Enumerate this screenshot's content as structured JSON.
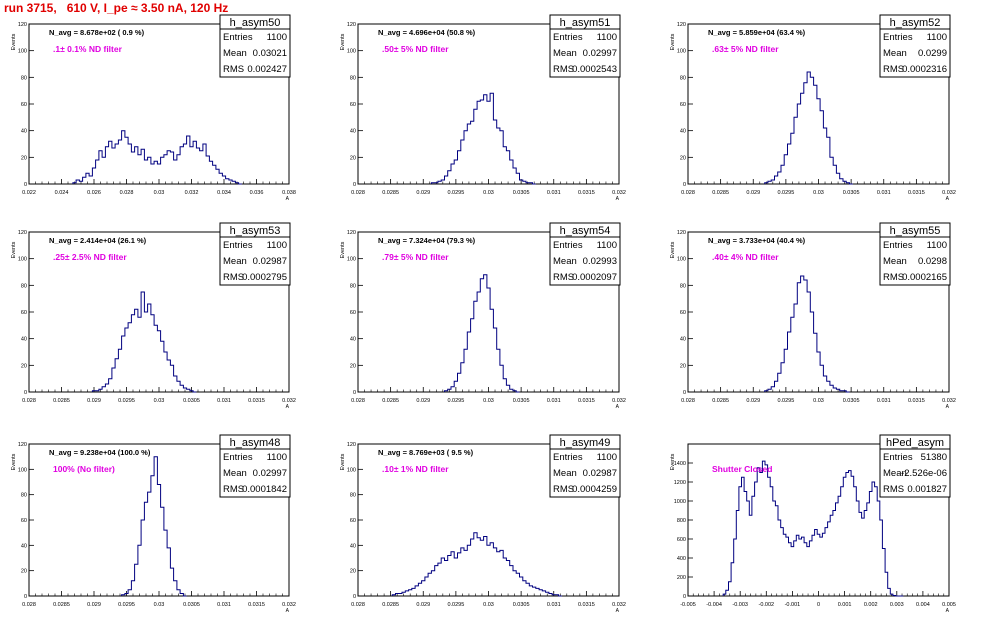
{
  "page_title": "run 3715,   610 V, I_pe ≈ 3.50 nA, 120 Hz",
  "colors": {
    "title": "#e00000",
    "histogram": "#000080",
    "filter_label": "#e000e0"
  },
  "stats_labels": {
    "entries": "Entries",
    "mean": "Mean",
    "rms": "RMS"
  },
  "chart_data": [
    {
      "type": "histogram",
      "name": "h_asym50",
      "navg": "N_avg = 8.678e+02 ( 0.9 %)",
      "filter": ".1± 0.1% ND filter",
      "entries": "1100",
      "mean": "0.03021",
      "rms": "0.002427",
      "xlabel": "A_UID",
      "ylabel": "Events",
      "xlim": [
        0.022,
        0.038
      ],
      "ylim": [
        0,
        120
      ],
      "xticks": [
        0.022,
        0.024,
        0.026,
        0.028,
        0.03,
        0.032,
        0.034,
        0.036,
        0.038
      ],
      "xtick_labels": [
        "0.022",
        "0.024",
        "0.026",
        "0.028",
        "0.03",
        "0.032",
        "0.034",
        "0.036",
        "0.038"
      ],
      "yticks": [
        0,
        20,
        40,
        60,
        80,
        100,
        120
      ],
      "ytick_labels": [
        "0",
        "20",
        "40",
        "60",
        "80",
        "100",
        "120"
      ],
      "x": [
        0.0248,
        0.025,
        0.0252,
        0.0254,
        0.0256,
        0.0258,
        0.026,
        0.0262,
        0.0264,
        0.0266,
        0.0268,
        0.027,
        0.0272,
        0.0274,
        0.0276,
        0.0278,
        0.028,
        0.0282,
        0.0284,
        0.0286,
        0.0288,
        0.029,
        0.0292,
        0.0294,
        0.0296,
        0.0298,
        0.03,
        0.0302,
        0.0304,
        0.0306,
        0.0308,
        0.031,
        0.0312,
        0.0314,
        0.0316,
        0.0318,
        0.032,
        0.0322,
        0.0324,
        0.0326,
        0.0328,
        0.033,
        0.0332,
        0.0334,
        0.0336,
        0.0338,
        0.034,
        0.0342,
        0.0344,
        0.0346,
        0.0348,
        0.035
      ],
      "values": [
        1,
        3,
        2,
        5,
        8,
        6,
        12,
        18,
        25,
        20,
        28,
        32,
        27,
        30,
        33,
        40,
        35,
        30,
        24,
        28,
        22,
        26,
        18,
        20,
        15,
        17,
        15,
        20,
        22,
        25,
        24,
        18,
        22,
        28,
        30,
        36,
        28,
        32,
        27,
        25,
        30,
        21,
        17,
        14,
        11,
        8,
        6,
        4,
        3,
        2,
        1,
        0
      ]
    },
    {
      "type": "histogram",
      "name": "h_asym51",
      "navg": "N_avg = 4.696e+04 (50.8 %)",
      "filter": ".50± 5% ND filter",
      "entries": "1100",
      "mean": "0.02997",
      "rms": "0.0002543",
      "xlabel": "A_UID",
      "ylabel": "Events",
      "xlim": [
        0.028,
        0.032
      ],
      "ylim": [
        0,
        120
      ],
      "xticks": [
        0.028,
        0.0285,
        0.029,
        0.0295,
        0.03,
        0.0305,
        0.031,
        0.0315,
        0.032
      ],
      "xtick_labels": [
        "0.028",
        "0.0285",
        "0.029",
        "0.0295",
        "0.03",
        "0.0305",
        "0.031",
        "0.0315",
        "0.032"
      ],
      "yticks": [
        0,
        20,
        40,
        60,
        80,
        100,
        120
      ],
      "ytick_labels": [
        "0",
        "20",
        "40",
        "60",
        "80",
        "100",
        "120"
      ],
      "x": [
        0.02915,
        0.0292,
        0.02925,
        0.0293,
        0.02935,
        0.0294,
        0.02945,
        0.0295,
        0.02955,
        0.0296,
        0.02965,
        0.0297,
        0.02975,
        0.0298,
        0.02985,
        0.0299,
        0.02995,
        0.03,
        0.03005,
        0.0301,
        0.03015,
        0.0302,
        0.03025,
        0.0303,
        0.03035,
        0.0304,
        0.03045,
        0.0305,
        0.03055,
        0.0306,
        0.03065,
        0.0307
      ],
      "values": [
        1,
        1,
        2,
        3,
        6,
        10,
        15,
        18,
        25,
        33,
        40,
        45,
        47,
        56,
        62,
        63,
        67,
        62,
        68,
        48,
        42,
        40,
        28,
        25,
        18,
        12,
        8,
        3,
        2,
        1,
        1,
        0
      ]
    },
    {
      "type": "histogram",
      "name": "h_asym52",
      "navg": "N_avg = 5.859e+04 (63.4 %)",
      "filter": ".63± 5% ND filter",
      "entries": "1100",
      "mean": "0.0299",
      "rms": "0.0002316",
      "xlabel": "A_UID",
      "ylabel": "Events",
      "xlim": [
        0.028,
        0.032
      ],
      "ylim": [
        0,
        120
      ],
      "xticks": [
        0.028,
        0.0285,
        0.029,
        0.0295,
        0.03,
        0.0305,
        0.031,
        0.0315,
        0.032
      ],
      "xtick_labels": [
        "0.028",
        "0.0285",
        "0.029",
        "0.0295",
        "0.03",
        "0.0305",
        "0.031",
        "0.0315",
        "0.032"
      ],
      "yticks": [
        0,
        20,
        40,
        60,
        80,
        100,
        120
      ],
      "ytick_labels": [
        "0",
        "20",
        "40",
        "60",
        "80",
        "100",
        "120"
      ],
      "x": [
        0.0292,
        0.02925,
        0.0293,
        0.02935,
        0.0294,
        0.02945,
        0.0295,
        0.02955,
        0.0296,
        0.02965,
        0.0297,
        0.02975,
        0.0298,
        0.02985,
        0.0299,
        0.02995,
        0.03,
        0.03005,
        0.0301,
        0.03015,
        0.0302,
        0.03025,
        0.0303,
        0.03035,
        0.0304,
        0.03045,
        0.0305
      ],
      "values": [
        1,
        2,
        3,
        6,
        9,
        14,
        22,
        30,
        38,
        50,
        60,
        68,
        76,
        84,
        80,
        74,
        64,
        55,
        42,
        35,
        20,
        14,
        8,
        4,
        2,
        1,
        0
      ]
    },
    {
      "type": "histogram",
      "name": "h_asym53",
      "navg": "N_avg = 2.414e+04 (26.1 %)",
      "filter": ".25± 2.5% ND filter",
      "entries": "1100",
      "mean": "0.02987",
      "rms": "0.0002795",
      "xlabel": "A_UID",
      "ylabel": "Events",
      "xlim": [
        0.028,
        0.032
      ],
      "ylim": [
        0,
        120
      ],
      "xticks": [
        0.028,
        0.0285,
        0.029,
        0.0295,
        0.03,
        0.0305,
        0.031,
        0.0315,
        0.032
      ],
      "xtick_labels": [
        "0.028",
        "0.0285",
        "0.029",
        "0.0295",
        "0.03",
        "0.0305",
        "0.031",
        "0.0315",
        "0.032"
      ],
      "yticks": [
        0,
        20,
        40,
        60,
        80,
        100,
        120
      ],
      "ytick_labels": [
        "0",
        "20",
        "40",
        "60",
        "80",
        "100",
        "120"
      ],
      "x": [
        0.029,
        0.02905,
        0.0291,
        0.02915,
        0.0292,
        0.02925,
        0.0293,
        0.02935,
        0.0294,
        0.02945,
        0.0295,
        0.02955,
        0.0296,
        0.02965,
        0.0297,
        0.02975,
        0.0298,
        0.02985,
        0.0299,
        0.02995,
        0.03,
        0.03005,
        0.0301,
        0.03015,
        0.0302,
        0.03025,
        0.0303,
        0.03035,
        0.0304,
        0.03045,
        0.0305,
        0.03055
      ],
      "values": [
        1,
        1,
        2,
        4,
        6,
        10,
        18,
        25,
        32,
        42,
        48,
        52,
        58,
        62,
        56,
        75,
        60,
        66,
        58,
        50,
        46,
        38,
        30,
        24,
        20,
        12,
        8,
        5,
        3,
        2,
        1,
        0
      ]
    },
    {
      "type": "histogram",
      "name": "h_asym54",
      "navg": "N_avg = 7.324e+04 (79.3 %)",
      "filter": ".79± 5% ND filter",
      "entries": "1100",
      "mean": "0.02993",
      "rms": "0.0002097",
      "xlabel": "A_UID",
      "ylabel": "Events",
      "xlim": [
        0.028,
        0.032
      ],
      "ylim": [
        0,
        120
      ],
      "xticks": [
        0.028,
        0.0285,
        0.029,
        0.0295,
        0.03,
        0.0305,
        0.031,
        0.0315,
        0.032
      ],
      "xtick_labels": [
        "0.028",
        "0.0285",
        "0.029",
        "0.0295",
        "0.03",
        "0.0305",
        "0.031",
        "0.0315",
        "0.032"
      ],
      "yticks": [
        0,
        20,
        40,
        60,
        80,
        100,
        120
      ],
      "ytick_labels": [
        "0",
        "20",
        "40",
        "60",
        "80",
        "100",
        "120"
      ],
      "x": [
        0.02935,
        0.0294,
        0.02945,
        0.0295,
        0.02955,
        0.0296,
        0.02965,
        0.0297,
        0.02975,
        0.0298,
        0.02985,
        0.0299,
        0.02995,
        0.03,
        0.03005,
        0.0301,
        0.03015,
        0.0302,
        0.03025,
        0.0303,
        0.03035,
        0.0304,
        0.03045
      ],
      "values": [
        1,
        2,
        4,
        8,
        14,
        22,
        32,
        45,
        55,
        68,
        75,
        85,
        88,
        78,
        62,
        48,
        32,
        20,
        10,
        5,
        2,
        1,
        0
      ]
    },
    {
      "type": "histogram",
      "name": "h_asym55",
      "navg": "N_avg = 3.733e+04 (40.4 %)",
      "filter": ".40± 4% ND filter",
      "entries": "1100",
      "mean": "0.0298",
      "rms": "0.0002165",
      "xlabel": "A_UID",
      "ylabel": "Events",
      "xlim": [
        0.028,
        0.032
      ],
      "ylim": [
        0,
        120
      ],
      "xticks": [
        0.028,
        0.0285,
        0.029,
        0.0295,
        0.03,
        0.0305,
        0.031,
        0.0315,
        0.032
      ],
      "xtick_labels": [
        "0.028",
        "0.0285",
        "0.029",
        "0.0295",
        "0.03",
        "0.0305",
        "0.031",
        "0.0315",
        "0.032"
      ],
      "yticks": [
        0,
        20,
        40,
        60,
        80,
        100,
        120
      ],
      "ytick_labels": [
        "0",
        "20",
        "40",
        "60",
        "80",
        "100",
        "120"
      ],
      "x": [
        0.0292,
        0.02925,
        0.0293,
        0.02935,
        0.0294,
        0.02945,
        0.0295,
        0.02955,
        0.0296,
        0.02965,
        0.0297,
        0.02975,
        0.0298,
        0.02985,
        0.0299,
        0.02995,
        0.03,
        0.03005,
        0.0301,
        0.03015,
        0.0302,
        0.03025,
        0.0303,
        0.03035,
        0.0304,
        0.03045
      ],
      "values": [
        1,
        2,
        4,
        8,
        14,
        22,
        32,
        45,
        56,
        66,
        82,
        87,
        84,
        75,
        60,
        44,
        30,
        20,
        12,
        8,
        5,
        3,
        2,
        1,
        1,
        0
      ]
    },
    {
      "type": "histogram",
      "name": "h_asym48",
      "navg": "N_avg = 9.238e+04 (100.0 %)",
      "filter": "100% (No filter)",
      "entries": "1100",
      "mean": "0.02997",
      "rms": "0.0001842",
      "xlabel": "A_UID",
      "ylabel": "Events",
      "xlim": [
        0.028,
        0.032
      ],
      "ylim": [
        0,
        120
      ],
      "xticks": [
        0.028,
        0.0285,
        0.029,
        0.0295,
        0.03,
        0.0305,
        0.031,
        0.0315,
        0.032
      ],
      "xtick_labels": [
        "0.028",
        "0.0285",
        "0.029",
        "0.0295",
        "0.03",
        "0.0305",
        "0.031",
        "0.0315",
        "0.032"
      ],
      "yticks": [
        0,
        20,
        40,
        60,
        80,
        100,
        120
      ],
      "ytick_labels": [
        "0",
        "20",
        "40",
        "60",
        "80",
        "100",
        "120"
      ],
      "x": [
        0.02945,
        0.0295,
        0.02955,
        0.0296,
        0.02965,
        0.0297,
        0.02975,
        0.0298,
        0.02985,
        0.0299,
        0.02995,
        0.03,
        0.03005,
        0.0301,
        0.03015,
        0.0302,
        0.03025,
        0.0303,
        0.03035,
        0.0304
      ],
      "values": [
        1,
        2,
        5,
        12,
        25,
        40,
        60,
        74,
        82,
        95,
        110,
        88,
        70,
        52,
        38,
        22,
        12,
        5,
        2,
        0
      ]
    },
    {
      "type": "histogram",
      "name": "h_asym49",
      "navg": "N_avg = 8.769e+03 ( 9.5 %)",
      "filter": ".10± 1% ND filter",
      "entries": "1100",
      "mean": "0.02987",
      "rms": "0.0004259",
      "xlabel": "A_UID",
      "ylabel": "Events",
      "xlim": [
        0.028,
        0.032
      ],
      "ylim": [
        0,
        120
      ],
      "xticks": [
        0.028,
        0.0285,
        0.029,
        0.0295,
        0.03,
        0.0305,
        0.031,
        0.0315,
        0.032
      ],
      "xtick_labels": [
        "0.028",
        "0.0285",
        "0.029",
        "0.0295",
        "0.03",
        "0.0305",
        "0.031",
        "0.0315",
        "0.032"
      ],
      "yticks": [
        0,
        20,
        40,
        60,
        80,
        100,
        120
      ],
      "ytick_labels": [
        "0",
        "20",
        "40",
        "60",
        "80",
        "100",
        "120"
      ],
      "x": [
        0.02855,
        0.0286,
        0.02865,
        0.0287,
        0.02875,
        0.0288,
        0.02885,
        0.0289,
        0.02895,
        0.029,
        0.02905,
        0.0291,
        0.02915,
        0.0292,
        0.02925,
        0.0293,
        0.02935,
        0.0294,
        0.02945,
        0.0295,
        0.02955,
        0.0296,
        0.02965,
        0.0297,
        0.02975,
        0.0298,
        0.02985,
        0.0299,
        0.02995,
        0.03,
        0.03005,
        0.0301,
        0.03015,
        0.0302,
        0.03025,
        0.0303,
        0.03035,
        0.0304,
        0.03045,
        0.0305,
        0.03055,
        0.0306,
        0.03065,
        0.0307,
        0.03075,
        0.0308,
        0.03085,
        0.0309,
        0.03095,
        0.031,
        0.03105,
        0.0311
      ],
      "values": [
        1,
        2,
        2,
        3,
        4,
        5,
        6,
        8,
        10,
        12,
        15,
        18,
        20,
        24,
        26,
        30,
        28,
        32,
        35,
        30,
        34,
        38,
        36,
        40,
        45,
        50,
        46,
        44,
        47,
        40,
        42,
        38,
        35,
        36,
        30,
        28,
        24,
        20,
        18,
        15,
        12,
        10,
        8,
        7,
        6,
        5,
        4,
        3,
        2,
        1,
        1,
        0
      ]
    },
    {
      "type": "histogram",
      "name": "hPed_asym",
      "navg": "",
      "filter": "Shutter Closed",
      "entries": "51380",
      "mean": "-2.526e-06",
      "rms": "0.001827",
      "xlabel": "A_UID",
      "ylabel": "Events",
      "xlim": [
        -0.005,
        0.005
      ],
      "ylim": [
        0,
        1600
      ],
      "xticks": [
        -0.005,
        -0.004,
        -0.003,
        -0.002,
        -0.001,
        0,
        0.001,
        0.002,
        0.003,
        0.004,
        0.005
      ],
      "xtick_labels": [
        "-0.005",
        "-0.004",
        "-0.003",
        "-0.002",
        "-0.001",
        "0",
        "0.001",
        "0.002",
        "0.003",
        "0.004",
        "0.005"
      ],
      "yticks": [
        0,
        200,
        400,
        600,
        800,
        1000,
        1200,
        1400
      ],
      "ytick_labels": [
        "0",
        "200",
        "400",
        "600",
        "800",
        "1000",
        "1200",
        "1400"
      ],
      "x": [
        -0.0036,
        -0.0035,
        -0.0034,
        -0.0033,
        -0.0032,
        -0.0031,
        -0.003,
        -0.0029,
        -0.0028,
        -0.0027,
        -0.0026,
        -0.0025,
        -0.0024,
        -0.0023,
        -0.0022,
        -0.0021,
        -0.002,
        -0.0019,
        -0.0018,
        -0.0017,
        -0.0016,
        -0.0015,
        -0.0014,
        -0.0013,
        -0.0012,
        -0.0011,
        -0.001,
        -0.0009,
        -0.0008,
        -0.0007,
        -0.0006,
        -0.0005,
        -0.0004,
        -0.0003,
        -0.0002,
        -0.0001,
        0.0,
        0.0001,
        0.0002,
        0.0003,
        0.0004,
        0.0005,
        0.0006,
        0.0007,
        0.0008,
        0.0009,
        0.001,
        0.0011,
        0.0012,
        0.0013,
        0.0014,
        0.0015,
        0.0016,
        0.0017,
        0.0018,
        0.0019,
        0.002,
        0.0021,
        0.0022,
        0.0023,
        0.0024,
        0.0025,
        0.0026,
        0.0027,
        0.0028,
        0.0029,
        0.003,
        0.0031,
        0.0032
      ],
      "values": [
        20,
        60,
        150,
        350,
        600,
        900,
        1150,
        1250,
        1100,
        1000,
        850,
        1050,
        1200,
        1350,
        1300,
        1420,
        1380,
        1250,
        1150,
        1000,
        950,
        800,
        720,
        650,
        620,
        560,
        520,
        580,
        640,
        600,
        620,
        560,
        520,
        580,
        640,
        700,
        650,
        620,
        660,
        720,
        780,
        850,
        900,
        980,
        1050,
        1150,
        1250,
        1300,
        1320,
        1260,
        1150,
        1000,
        880,
        820,
        900,
        980,
        1100,
        1200,
        1150,
        1000,
        800,
        500,
        250,
        80,
        20,
        5,
        0,
        0,
        0
      ]
    }
  ]
}
